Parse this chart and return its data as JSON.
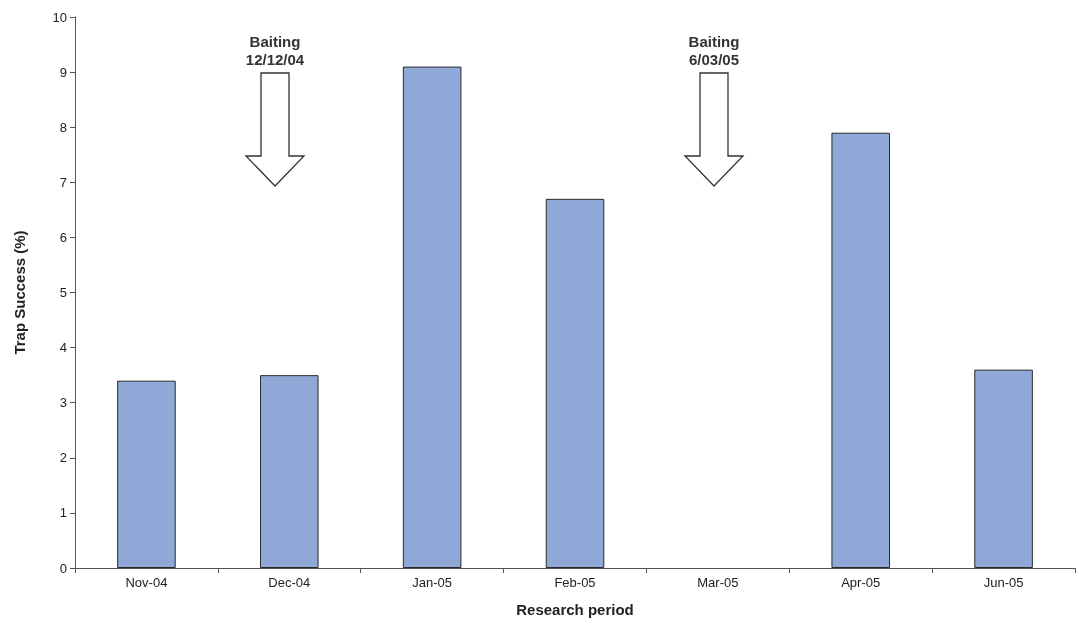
{
  "chart_data": {
    "type": "bar",
    "xlabel": "Research period",
    "ylabel": "Trap Success (%)",
    "categories": [
      "Nov-04",
      "Dec-04",
      "Jan-05",
      "Feb-05",
      "Mar-05",
      "Apr-05",
      "Jun-05"
    ],
    "values": [
      3.4,
      3.5,
      9.1,
      6.7,
      0,
      7.9,
      3.6
    ],
    "color": "#8fa8d8",
    "ylim": [
      0,
      10
    ],
    "yticks": [
      0,
      1,
      2,
      3,
      4,
      5,
      6,
      7,
      8,
      9,
      10
    ],
    "grid": false,
    "annotations": [
      "Baiting\n12/12/04",
      "Baiting\n6/03/05"
    ]
  }
}
